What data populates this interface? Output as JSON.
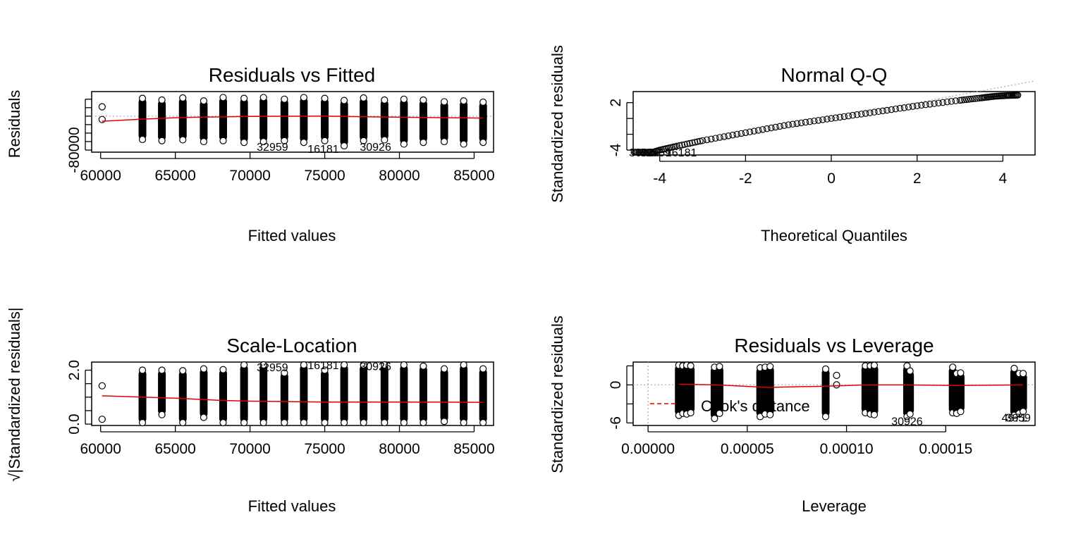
{
  "chart_data": [
    {
      "type": "scatter",
      "title": "Residuals vs Fitted",
      "xlabel": "Fitted values",
      "ylabel": "Residuals",
      "xlim": [
        59400,
        86300
      ],
      "ylim": [
        -85000,
        58000
      ],
      "x_ticks": [
        60000,
        65000,
        70000,
        75000,
        80000,
        85000
      ],
      "x_tick_labels": [
        "60000",
        "65000",
        "70000",
        "75000",
        "80000",
        "85000"
      ],
      "y_ticks": [
        -80000,
        -60000,
        -40000,
        -20000,
        0,
        20000,
        40000
      ],
      "y_tick_labels": [
        "-80000"
      ],
      "groups": [
        {
          "x": 60100,
          "min": -8000,
          "max": 22000,
          "sparse": true
        },
        {
          "x": 62800,
          "min": -55000,
          "max": 42000
        },
        {
          "x": 64100,
          "min": -58000,
          "max": 38000
        },
        {
          "x": 65500,
          "min": -56000,
          "max": 43000
        },
        {
          "x": 66900,
          "min": -60000,
          "max": 36000
        },
        {
          "x": 68200,
          "min": -58000,
          "max": 44000
        },
        {
          "x": 69600,
          "min": -62000,
          "max": 42000
        },
        {
          "x": 70900,
          "min": -60000,
          "max": 44000
        },
        {
          "x": 72300,
          "min": -58000,
          "max": 40000
        },
        {
          "x": 73600,
          "min": -62000,
          "max": 44000
        },
        {
          "x": 75000,
          "min": -58000,
          "max": 42000
        },
        {
          "x": 76300,
          "min": -70000,
          "max": 37000
        },
        {
          "x": 77600,
          "min": -58000,
          "max": 43000
        },
        {
          "x": 79000,
          "min": -56000,
          "max": 38000
        },
        {
          "x": 80300,
          "min": -66000,
          "max": 40000
        },
        {
          "x": 81600,
          "min": -62000,
          "max": 38000
        },
        {
          "x": 83000,
          "min": -60000,
          "max": 34000
        },
        {
          "x": 84300,
          "min": -66000,
          "max": 36000
        },
        {
          "x": 85600,
          "min": -62000,
          "max": 33000
        }
      ],
      "smooth": {
        "x": [
          60100,
          62800,
          65500,
          70000,
          75000,
          80000,
          85600
        ],
        "y": [
          -12000,
          -7000,
          -3000,
          -600,
          0,
          -2500,
          -4500
        ]
      },
      "reference_line": {
        "y": 0
      },
      "point_labels": [
        {
          "text": "32959",
          "x": 71500,
          "y": -72000
        },
        {
          "text": "16181",
          "x": 74900,
          "y": -77000
        },
        {
          "text": "30926",
          "x": 78400,
          "y": -72000
        }
      ]
    },
    {
      "type": "scatter",
      "title": "Normal Q-Q",
      "xlabel": "Theoretical Quantiles",
      "ylabel": "Standardized residuals",
      "xlim": [
        -4.62,
        4.75
      ],
      "ylim": [
        -4.62,
        3.4
      ],
      "x_ticks": [
        -4,
        -2,
        0,
        2,
        4
      ],
      "x_tick_labels": [
        "-4",
        "-2",
        "0",
        "2",
        "4"
      ],
      "y_ticks": [
        -4,
        -2,
        0,
        2
      ],
      "y_tick_labels": [
        "-4",
        "2"
      ],
      "curve": {
        "x": [
          -4.6,
          -4.3,
          -4.0,
          -3.6,
          -3.0,
          -2.0,
          -1.0,
          0.0,
          1.0,
          2.0,
          3.0,
          3.5,
          3.8,
          4.1,
          4.35
        ],
        "y": [
          -4.6,
          -4.5,
          -4.0,
          -3.5,
          -2.8,
          -1.8,
          -0.8,
          0.0,
          0.8,
          1.6,
          2.3,
          2.6,
          2.8,
          2.9,
          2.95
        ]
      },
      "reference_line": {
        "slope": 1,
        "intercept": 0
      },
      "point_labels": [
        {
          "text": "30926",
          "x": -4.35,
          "y": -4.5
        },
        {
          "text": "32959",
          "x": -4.1,
          "y": -4.35
        },
        {
          "text": "16181",
          "x": -3.5,
          "y": -4.55
        }
      ]
    },
    {
      "type": "scatter",
      "title": "Scale-Location",
      "xlabel": "Fitted values",
      "ylabel": "√|Standardized residuals|",
      "xlim": [
        59400,
        86300
      ],
      "ylim": [
        -0.05,
        2.3
      ],
      "x_ticks": [
        60000,
        65000,
        70000,
        75000,
        80000,
        85000
      ],
      "x_tick_labels": [
        "60000",
        "65000",
        "70000",
        "75000",
        "80000",
        "85000"
      ],
      "y_ticks": [
        0.0,
        0.5,
        1.0,
        1.5,
        2.0
      ],
      "y_tick_labels": [
        "0.0",
        "2.0"
      ],
      "groups": [
        {
          "x": 60100,
          "min": 0.18,
          "max": 1.42,
          "sparse": true
        },
        {
          "x": 62800,
          "min": 0.03,
          "max": 2.0
        },
        {
          "x": 64100,
          "min": 0.35,
          "max": 2.0
        },
        {
          "x": 65500,
          "min": 0.02,
          "max": 1.98
        },
        {
          "x": 66900,
          "min": 0.25,
          "max": 2.05
        },
        {
          "x": 68200,
          "min": 0.02,
          "max": 2.02
        },
        {
          "x": 69600,
          "min": 0.05,
          "max": 2.2
        },
        {
          "x": 70900,
          "min": 0.02,
          "max": 2.2
        },
        {
          "x": 72300,
          "min": 0.02,
          "max": 1.9
        },
        {
          "x": 73600,
          "min": 0.03,
          "max": 2.25
        },
        {
          "x": 75000,
          "min": 0.02,
          "max": 2.0
        },
        {
          "x": 76300,
          "min": 0.02,
          "max": 2.25
        },
        {
          "x": 77600,
          "min": 0.05,
          "max": 2.2
        },
        {
          "x": 79000,
          "min": 0.02,
          "max": 2.2
        },
        {
          "x": 80300,
          "min": 0.05,
          "max": 2.2
        },
        {
          "x": 81600,
          "min": 0.02,
          "max": 2.15
        },
        {
          "x": 83000,
          "min": 0.1,
          "max": 2.05
        },
        {
          "x": 84300,
          "min": 0.02,
          "max": 2.2
        },
        {
          "x": 85600,
          "min": 0.02,
          "max": 2.05
        }
      ],
      "smooth": {
        "x": [
          60100,
          62800,
          65500,
          68000,
          70000,
          75000,
          80000,
          85600
        ],
        "y": [
          1.05,
          1.0,
          0.95,
          0.88,
          0.85,
          0.82,
          0.82,
          0.81
        ]
      },
      "point_labels": [
        {
          "text": "32959",
          "x": 71500,
          "y": 2.12
        },
        {
          "text": "16181",
          "x": 74900,
          "y": 2.28
        },
        {
          "text": "30926",
          "x": 78400,
          "y": 2.15
        }
      ]
    },
    {
      "type": "scatter",
      "title": "Residuals vs Leverage",
      "xlabel": "Leverage",
      "ylabel": "Standardized residuals",
      "xlim": [
        -7.5e-06,
        0.000195
      ],
      "ylim": [
        -6.4,
        3.6
      ],
      "x_ticks": [
        0.0,
        5e-05,
        0.0001,
        0.00015
      ],
      "x_tick_labels": [
        "0.00000",
        "0.00005",
        "0.00010",
        "0.00015"
      ],
      "y_ticks": [
        -6,
        -3,
        0,
        3
      ],
      "y_tick_labels": [
        "-6",
        "0"
      ],
      "groups": [
        {
          "x": 1.55e-05,
          "min": -4.8,
          "max": 3.1
        },
        {
          "x": 1.75e-05,
          "min": -4.5,
          "max": 3.0
        },
        {
          "x": 1.95e-05,
          "min": -4.6,
          "max": 3.1
        },
        {
          "x": 2.15e-05,
          "min": -4.4,
          "max": 3.0
        },
        {
          "x": 3.35e-05,
          "min": -5.3,
          "max": 2.8
        },
        {
          "x": 3.6e-05,
          "min": -4.5,
          "max": 2.9
        },
        {
          "x": 5.65e-05,
          "min": -5.0,
          "max": 2.7
        },
        {
          "x": 5.9e-05,
          "min": -4.6,
          "max": 2.8
        },
        {
          "x": 6.15e-05,
          "min": -4.7,
          "max": 2.9
        },
        {
          "x": 8.95e-05,
          "min": -5.0,
          "max": 2.5
        },
        {
          "x": 0.0001095,
          "min": -4.4,
          "max": 3.0
        },
        {
          "x": 0.000112,
          "min": -4.6,
          "max": 3.0
        },
        {
          "x": 0.000114,
          "min": -4.7,
          "max": 3.1
        },
        {
          "x": 0.0001305,
          "min": -5.0,
          "max": 3.0
        },
        {
          "x": 0.000132,
          "min": -4.6,
          "max": 2.2
        },
        {
          "x": 0.0001535,
          "min": -4.4,
          "max": 2.8
        },
        {
          "x": 0.0001555,
          "min": -4.5,
          "max": 1.8
        },
        {
          "x": 0.0001575,
          "min": -4.2,
          "max": 1.9
        },
        {
          "x": 0.0001845,
          "min": -4.8,
          "max": 2.6
        },
        {
          "x": 0.000187,
          "min": -4.5,
          "max": 1.8
        },
        {
          "x": 0.000189,
          "min": -4.2,
          "max": 1.8
        }
      ],
      "isolated_points": [
        {
          "x": 9.5e-05,
          "y": 1.5
        },
        {
          "x": 9.5e-05,
          "y": 0.0
        }
      ],
      "smooth": {
        "x": [
          1.55e-05,
          3.5e-05,
          6e-05,
          9e-05,
          0.00011,
          0.00013,
          0.000155,
          0.000189
        ],
        "y": [
          0.1,
          0.0,
          -0.4,
          -0.2,
          0.0,
          0.0,
          -0.1,
          0.0
        ]
      },
      "reference_lines": {
        "x": 0,
        "y": 0
      },
      "legend": {
        "label": "Cook's distance",
        "position": "bottom-left"
      },
      "point_labels": [
        {
          "text": "30926",
          "x": 0.0001305,
          "y": -5.7
        },
        {
          "text": "4971",
          "x": 0.0001845,
          "y": -5.1
        },
        {
          "text": "3659",
          "x": 0.0001865,
          "y": -5.1
        }
      ]
    }
  ]
}
